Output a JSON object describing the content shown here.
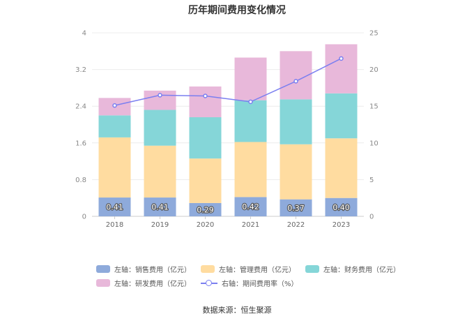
{
  "chart_data": {
    "type": "bar",
    "stacked": true,
    "title": "历年期间费用变化情况",
    "categories": [
      "2018",
      "2019",
      "2020",
      "2021",
      "2022",
      "2023"
    ],
    "ylim_left": [
      0,
      4
    ],
    "yticks_left": [
      "0",
      "0.8",
      "1.6",
      "2.4",
      "3.2",
      "4"
    ],
    "ylim_right": [
      0,
      25
    ],
    "yticks_right": [
      "0",
      "5",
      "10",
      "15",
      "20",
      "25"
    ],
    "series": [
      {
        "name": "左轴：销售费用（亿元）",
        "axis": "left",
        "color": "#8eaadb",
        "values": [
          0.41,
          0.41,
          0.29,
          0.42,
          0.37,
          0.4
        ],
        "labels": [
          "0.41",
          "0.41",
          "0.29",
          "0.42",
          "0.37",
          "0.40"
        ]
      },
      {
        "name": "左轴：管理费用（亿元）",
        "axis": "left",
        "color": "#ffdca0",
        "values": [
          1.31,
          1.13,
          0.97,
          1.2,
          1.2,
          1.3
        ]
      },
      {
        "name": "左轴：财务费用（亿元）",
        "axis": "left",
        "color": "#85d6d8",
        "values": [
          0.48,
          0.78,
          0.9,
          0.91,
          0.98,
          0.98
        ]
      },
      {
        "name": "左轴：研发费用（亿元）",
        "axis": "left",
        "color": "#e8b8da",
        "values": [
          0.38,
          0.42,
          0.67,
          0.93,
          1.05,
          1.07
        ]
      },
      {
        "name": "右轴：期间费用率（%）",
        "axis": "right",
        "type": "line",
        "color": "#7b7ff0",
        "values": [
          15.1,
          16.5,
          16.4,
          15.6,
          18.4,
          21.5
        ]
      }
    ]
  },
  "source": "数据来源：恒生聚源"
}
